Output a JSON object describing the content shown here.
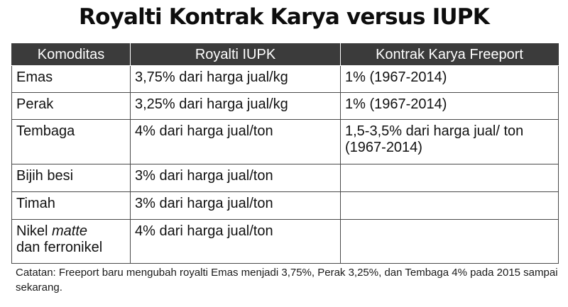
{
  "title": "Royalti Kontrak Karya versus IUPK",
  "table": {
    "headers": [
      "Komoditas",
      "Royalti IUPK",
      "Kontrak Karya Freeport"
    ],
    "rows": [
      {
        "komoditas": "Emas",
        "iupk": "3,75% dari harga jual/kg",
        "freeport": "1% (1967-2014)"
      },
      {
        "komoditas": "Perak",
        "iupk": "3,25% dari harga jual/kg",
        "freeport": "1% (1967-2014)"
      },
      {
        "komoditas": "Tembaga",
        "iupk": "4% dari harga jual/ton",
        "freeport": "1,5-3,5% dari harga jual/ ton (1967-2014)"
      },
      {
        "komoditas": "Bijih besi",
        "iupk": "3% dari harga jual/ton",
        "freeport": ""
      },
      {
        "komoditas": "Timah",
        "iupk": "3% dari harga jual/ton",
        "freeport": ""
      },
      {
        "komoditas_pre": "Nikel",
        "komoditas_italic": "matte",
        "komoditas_post": "dan ferronikel",
        "iupk": "4% dari harga jual/ton",
        "freeport": ""
      }
    ]
  },
  "note": "Catatan: Freeport baru mengubah royalti Emas menjadi 3,75%, Perak 3,25%, dan Tembaga 4% pada 2015 sampai sekarang."
}
